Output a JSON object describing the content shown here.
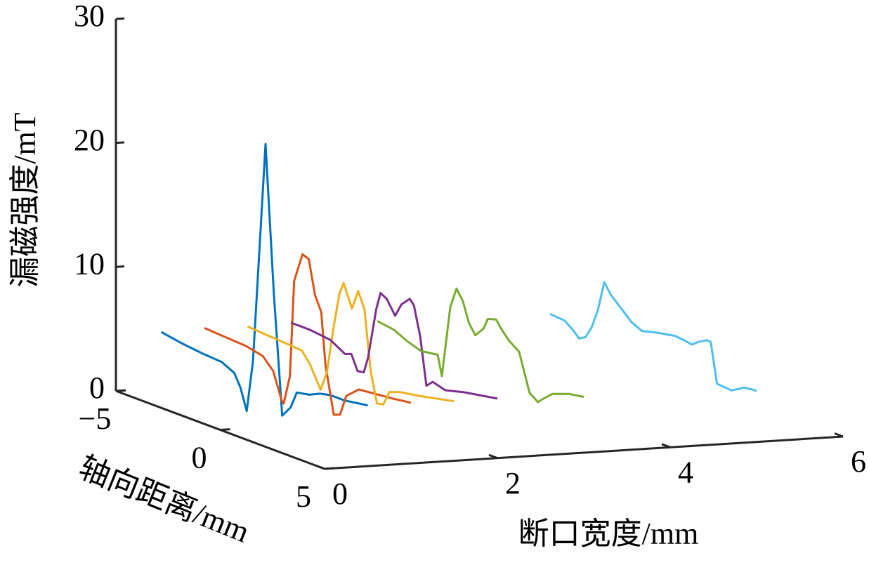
{
  "chart_data": {
    "type": "line3d",
    "xlabel": "断口宽度/mm",
    "ylabel": "轴向距离/mm",
    "zlabel": "漏磁强度/mT",
    "xlim": [
      0,
      6
    ],
    "xticks": [
      0,
      2,
      4,
      6
    ],
    "ylim": [
      -5,
      5
    ],
    "yticks": [
      {
        "value": -5,
        "label": "−5"
      },
      0,
      5
    ],
    "zlim": [
      0,
      30
    ],
    "zticks": [
      0,
      10,
      20,
      30
    ],
    "series": [
      {
        "color": "#0072BD",
        "x": 0.5,
        "y": [
          -4.9,
          -3.9,
          -2.9,
          -2.0,
          -1.4,
          -1.1,
          -0.8,
          -0.5,
          0.1,
          0.5,
          0.9,
          1.3,
          1.6,
          2.2,
          2.7,
          3.2,
          3.9,
          5.0
        ],
        "z": [
          4.6,
          4.3,
          4.1,
          4.0,
          3.5,
          2.5,
          0.8,
          5.0,
          22.9,
          11.0,
          1.5,
          2.4,
          3.8,
          4.0,
          4.4,
          4.6,
          4.6,
          4.9
        ]
      },
      {
        "color": "#D95319",
        "x": 1,
        "y": [
          -4.9,
          -3.9,
          -2.9,
          -2.1,
          -1.6,
          -1.2,
          -1.1,
          -0.8,
          -0.6,
          -0.2,
          0.1,
          0.4,
          0.7,
          0.9,
          1.3,
          1.6,
          1.9,
          2.5,
          3.1,
          4.2,
          5.0
        ],
        "z": [
          4.7,
          4.6,
          4.5,
          4.2,
          3.3,
          1.2,
          1.0,
          3.4,
          11.2,
          13.6,
          13.4,
          10.7,
          9.5,
          5.4,
          1.6,
          1.8,
          3.5,
          4.4,
          4.5,
          4.7,
          4.9
        ]
      },
      {
        "color": "#EDB120",
        "x": 1.5,
        "y": [
          -4.9,
          -4.0,
          -3.0,
          -2.3,
          -1.9,
          -1.4,
          -1.1,
          -0.8,
          -0.5,
          -0.3,
          0.1,
          0.4,
          0.7,
          1.0,
          1.3,
          1.6,
          1.9,
          2.4,
          3.4,
          5.0
        ],
        "z": [
          4.6,
          4.5,
          4.4,
          4.3,
          3.4,
          1.7,
          3.3,
          6.9,
          10.0,
          11.0,
          9.2,
          10.8,
          9.5,
          4.7,
          2.3,
          2.4,
          3.6,
          3.9,
          4.2,
          4.8
        ]
      },
      {
        "color": "#7E2F8E",
        "x": 2,
        "y": [
          -4.9,
          -4.0,
          -3.0,
          -2.3,
          -2.0,
          -1.7,
          -1.4,
          -1.2,
          -0.8,
          -0.6,
          -0.3,
          0.1,
          0.4,
          0.8,
          1.0,
          1.3,
          1.6,
          1.9,
          2.5,
          3.4,
          5.0
        ],
        "z": [
          4.7,
          4.7,
          4.5,
          3.8,
          4.0,
          2.8,
          2.9,
          4.2,
          8.4,
          9.8,
          9.5,
          8.4,
          9.5,
          10.2,
          9.8,
          7.5,
          3.7,
          4.2,
          3.9,
          4.3,
          4.8
        ]
      },
      {
        "color": "#77AC30",
        "x": 3,
        "y": [
          -4.9,
          -4.1,
          -3.5,
          -2.8,
          -2.0,
          -1.8,
          -1.4,
          -1.1,
          -0.8,
          -0.5,
          -0.2,
          0.2,
          0.4,
          0.8,
          1.0,
          1.4,
          1.9,
          2.4,
          2.8,
          3.1,
          3.5,
          4.3,
          5.0
        ],
        "z": [
          4.4,
          4.2,
          3.7,
          3.3,
          3.5,
          1.9,
          7.7,
          9.4,
          8.6,
          7.0,
          6.2,
          7.0,
          7.9,
          8.1,
          7.6,
          6.8,
          6.2,
          3.2,
          2.7,
          3.2,
          3.8,
          4.3,
          4.5
        ]
      },
      {
        "color": "#4DBEEE",
        "x": 5,
        "y": [
          -4.9,
          -4.2,
          -3.8,
          -3.5,
          -3.2,
          -2.9,
          -2.6,
          -2.3,
          -2.0,
          -1.5,
          -1.0,
          -0.5,
          0.2,
          1.1,
          1.6,
          1.9,
          2.2,
          2.6,
          2.8,
          3.1,
          3.8,
          4.4,
          4.8,
          5.0
        ],
        "z": [
          4.1,
          4.0,
          3.5,
          3.0,
          3.3,
          4.3,
          5.9,
          8.3,
          7.5,
          6.7,
          5.9,
          5.5,
          5.8,
          6.1,
          6.0,
          5.9,
          6.3,
          6.7,
          6.7,
          3.5,
          3.4,
          4.0,
          4.1,
          4.1
        ]
      }
    ]
  }
}
